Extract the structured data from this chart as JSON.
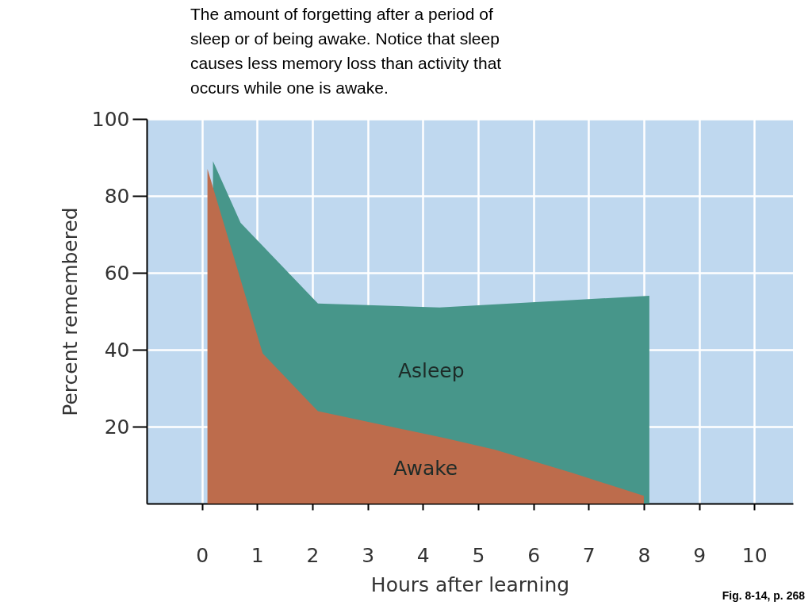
{
  "chart_data": {
    "type": "area",
    "title": "The amount of forgetting after a period of sleep or of being awake. Notice that sleep causes less memory loss than activity that occurs while one is awake.",
    "xlabel": "Hours after learning",
    "ylabel": "Percent remembered",
    "annotations": [
      "Fig. 8-14, p. 268"
    ],
    "series": [
      {
        "name": "Asleep",
        "color": "#47968a",
        "x": [
          0.2,
          0.7,
          2.1,
          4.3,
          8.1
        ],
        "values": [
          89,
          73,
          52,
          51,
          54
        ]
      },
      {
        "name": "Awake",
        "color": "#bd6c4c",
        "x": [
          0.1,
          1.1,
          2.1,
          4.4,
          5.3,
          6.7,
          8.0
        ],
        "values": [
          87,
          39,
          24,
          17,
          14,
          8,
          2
        ]
      }
    ],
    "xlim": [
      -1,
      10.7
    ],
    "ylim": [
      0,
      100
    ],
    "xticks": [
      0,
      1,
      2,
      3,
      4,
      5,
      6,
      7,
      8,
      9,
      10
    ],
    "yticks": [
      20,
      40,
      60,
      80,
      100
    ],
    "grid": true
  }
}
